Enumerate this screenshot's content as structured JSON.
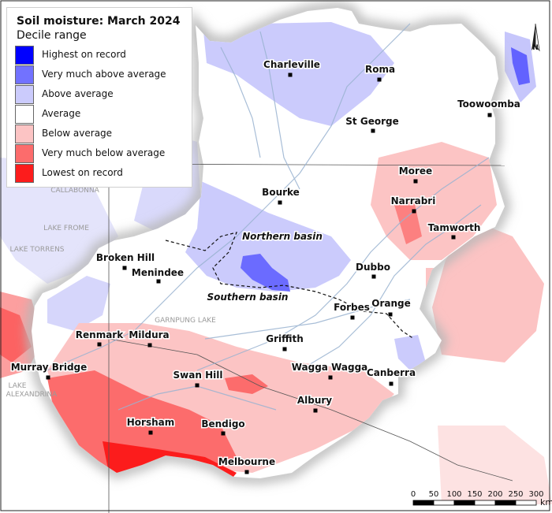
{
  "map": {
    "title": "Soil moisture: March 2024",
    "subtitle": "Decile range",
    "north_label": "N",
    "legend": [
      {
        "label": "Highest on record",
        "color": "#0000ff"
      },
      {
        "label": "Very much above average",
        "color": "#7272ff"
      },
      {
        "label": "Above average",
        "color": "#cbcbfc"
      },
      {
        "label": "Average",
        "color": "#ffffff"
      },
      {
        "label": "Below average",
        "color": "#fcc4c4"
      },
      {
        "label": "Very much below average",
        "color": "#fc6c6c"
      },
      {
        "label": "Lowest on record",
        "color": "#fc1c1c"
      }
    ],
    "towns": [
      {
        "name": "Charleville"
      },
      {
        "name": "Roma"
      },
      {
        "name": "Toowoomba"
      },
      {
        "name": "St George"
      },
      {
        "name": "Moree"
      },
      {
        "name": "Bourke"
      },
      {
        "name": "Narrabri"
      },
      {
        "name": "Tamworth"
      },
      {
        "name": "Broken Hill"
      },
      {
        "name": "Menindee"
      },
      {
        "name": "Dubbo"
      },
      {
        "name": "Forbes"
      },
      {
        "name": "Orange"
      },
      {
        "name": "Renmark"
      },
      {
        "name": "Mildura"
      },
      {
        "name": "Griffith"
      },
      {
        "name": "Murray Bridge"
      },
      {
        "name": "Swan Hill"
      },
      {
        "name": "Wagga Wagga"
      },
      {
        "name": "Canberra"
      },
      {
        "name": "Albury"
      },
      {
        "name": "Horsham"
      },
      {
        "name": "Bendigo"
      },
      {
        "name": "Melbourne"
      }
    ],
    "basins": [
      {
        "name": "Northern basin"
      },
      {
        "name": "Southern basin"
      }
    ],
    "lakes": [
      {
        "name": "CALLABONNA"
      },
      {
        "name": "LAKE FROME"
      },
      {
        "name": "LAKE TORRENS"
      },
      {
        "name": "GARNPUNG LAKE"
      },
      {
        "name": "LAKE"
      },
      {
        "name": "ALEXANDRINA"
      }
    ],
    "scale_bar": {
      "ticks": [
        "0",
        "50",
        "100",
        "150",
        "200",
        "250",
        "300"
      ],
      "unit": "km"
    }
  }
}
